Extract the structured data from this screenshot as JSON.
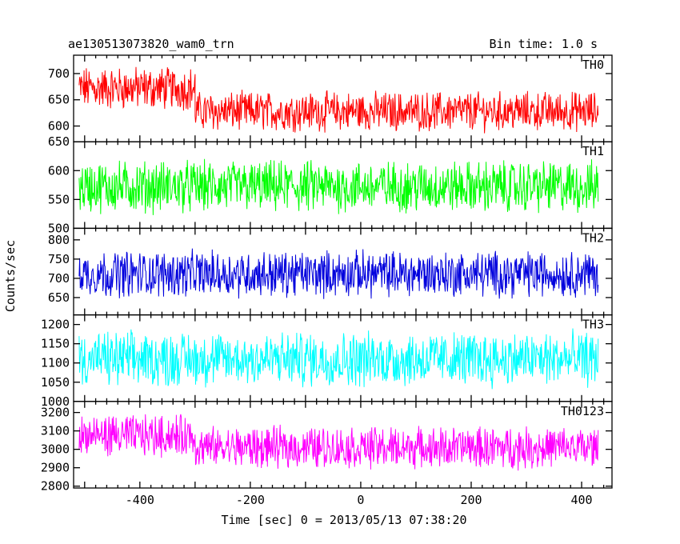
{
  "chart_data": {
    "type": "line",
    "title": "ae130513073820_wam0_trn",
    "bin_time": "Bin time: 1.0 s",
    "xlabel": "Time [sec] 0 = 2013/05/13 07:38:20",
    "ylabel": "Counts/sec",
    "xlim": [
      -520,
      455
    ],
    "x_ticks": [
      -400,
      -200,
      0,
      200,
      400
    ],
    "x_range_data": [
      -510,
      430
    ],
    "grid": false,
    "panels": [
      {
        "name": "TH0",
        "color": "#ff0000",
        "ylim": [
          570,
          735
        ],
        "y_ticks": [
          600,
          650,
          700
        ],
        "segments": [
          {
            "x": [
              -510,
              -300
            ],
            "mean": 672,
            "amp": 55
          },
          {
            "x": [
              -300,
              430
            ],
            "mean": 628,
            "amp": 50
          }
        ]
      },
      {
        "name": "TH1",
        "color": "#00ff00",
        "ylim": [
          500,
          650
        ],
        "y_ticks": [
          500,
          550,
          600,
          650
        ],
        "segments": [
          {
            "x": [
              -510,
              430
            ],
            "mean": 572,
            "amp": 60
          }
        ]
      },
      {
        "name": "TH2",
        "color": "#0000dd",
        "ylim": [
          605,
          830
        ],
        "y_ticks": [
          650,
          700,
          750,
          800
        ],
        "segments": [
          {
            "x": [
              -510,
              430
            ],
            "mean": 712,
            "amp": 80
          }
        ]
      },
      {
        "name": "TH3",
        "color": "#00ffff",
        "ylim": [
          1000,
          1225
        ],
        "y_ticks": [
          1000,
          1050,
          1100,
          1150,
          1200
        ],
        "segments": [
          {
            "x": [
              -510,
              430
            ],
            "mean": 1110,
            "amp": 95
          }
        ]
      },
      {
        "name": "TH0123",
        "color": "#ff00ff",
        "ylim": [
          2790,
          3260
        ],
        "y_ticks": [
          2800,
          2900,
          3000,
          3100,
          3200
        ],
        "segments": [
          {
            "x": [
              -510,
              -300
            ],
            "mean": 3075,
            "amp": 150
          },
          {
            "x": [
              -300,
              430
            ],
            "mean": 3010,
            "amp": 150
          }
        ]
      }
    ]
  }
}
